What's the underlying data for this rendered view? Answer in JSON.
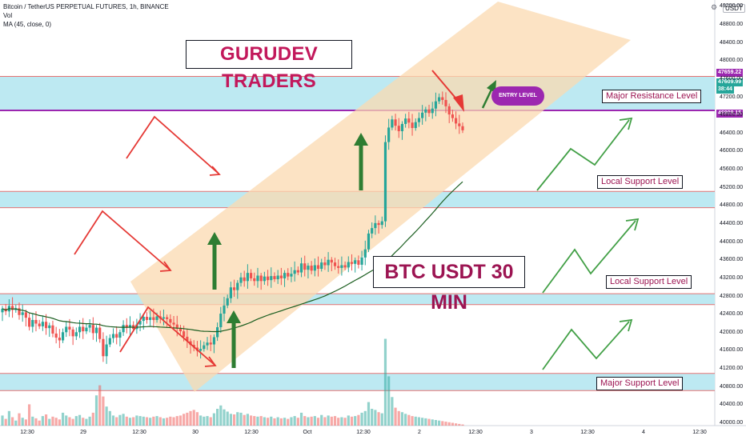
{
  "header": {
    "symbol_line": "Bitcoin / TetherUS PERPETUAL FUTURES, 1h, BINANCE",
    "vol_label": "Vol",
    "ma_label": "MA (45, close, 0)",
    "currency_badge": "USDT"
  },
  "annotations": {
    "title": "GURUDEV TRADERS",
    "subtitle": "BTC USDT 30 MIN",
    "entry_level": "ENTRY LEVEL",
    "levels": {
      "major_resistance": "Major Resistance Level",
      "local_support_1": "Local Support Level",
      "local_support_2": "Local Support Level",
      "major_support": "Major Support Level"
    }
  },
  "price_tags": {
    "upper": "47659.22",
    "current": "47609.99",
    "countdown": "38:44",
    "lower": "46909.15"
  },
  "colors": {
    "up": "#26a69a",
    "down": "#ef5350",
    "zone_fill": "#bde9f2",
    "channel_fill": "#fbd9b0",
    "ma_line": "#1b5e20",
    "arrow_green": "#2e7d32",
    "arrow_red": "#e53935",
    "resistance_tag": "#9c27b0",
    "price_tag": "#26a69a"
  },
  "chart_data": {
    "type": "candlestick",
    "title": "Bitcoin / TetherUS PERPETUAL FUTURES, 1h, BINANCE",
    "y_axis": {
      "ticks": [
        40000,
        40400,
        40800,
        41200,
        41600,
        42000,
        42400,
        42800,
        43200,
        43600,
        44000,
        44400,
        44800,
        45200,
        45600,
        46000,
        46400,
        46800,
        47200,
        47600,
        48000,
        48400,
        48800,
        49200
      ],
      "ylim": [
        40000,
        49300
      ]
    },
    "x_axis": {
      "ticks": [
        "12:30",
        "29",
        "12:30",
        "30",
        "12:30",
        "Oct",
        "12:30",
        "2",
        "12:30",
        "3",
        "12:30",
        "4",
        "12:30"
      ]
    },
    "zones": [
      {
        "name": "Major Resistance Level",
        "low": 46909.15,
        "high": 47659.22
      },
      {
        "name": "Local Support Level",
        "low": 44760,
        "high": 45120
      },
      {
        "name": "Local Support Level",
        "low": 42620,
        "high": 42860
      },
      {
        "name": "Major Support Level",
        "low": 40720,
        "high": 41100
      }
    ],
    "ma_period": 45,
    "close_start": 42450,
    "candle_moves": [
      80,
      -60,
      120,
      -90,
      40,
      -150,
      60,
      -120,
      -200,
      150,
      -80,
      -60,
      100,
      -140,
      60,
      -180,
      -90,
      -60,
      180,
      120,
      -60,
      -150,
      90,
      120,
      -100,
      80,
      60,
      -180,
      120,
      -250,
      -380,
      260,
      140,
      90,
      -80,
      120,
      160,
      -60,
      60,
      -90,
      100,
      80,
      90,
      -70,
      60,
      -60,
      80,
      -50,
      30,
      -40,
      -80,
      -40,
      -90,
      -60,
      -120,
      -100,
      -80,
      -60,
      -70,
      40,
      80,
      60,
      -40,
      160,
      220,
      300,
      180,
      160,
      240,
      -60,
      160,
      120,
      -80,
      180,
      -120,
      -60,
      120,
      -120,
      100,
      -80,
      90,
      -70,
      80,
      -60,
      120,
      -80,
      60,
      80,
      -50,
      200,
      -140,
      90,
      -110,
      120,
      -80,
      140,
      -60,
      120,
      -60,
      -80,
      -40,
      60,
      -50,
      120,
      -40,
      80,
      -100,
      160,
      180,
      350,
      120,
      110,
      -40,
      80,
      1750,
      320,
      180,
      -140,
      -120,
      160,
      120,
      -90,
      -120,
      130,
      90,
      120,
      70,
      -80,
      100,
      160,
      90,
      -60,
      -140,
      -180,
      -80,
      -120,
      -60,
      -90
    ],
    "volume": [
      180,
      120,
      260,
      150,
      90,
      220,
      140,
      110,
      380,
      160,
      130,
      90,
      170,
      200,
      120,
      160,
      140,
      110,
      230,
      180,
      150,
      120,
      170,
      190,
      140,
      120,
      160,
      230,
      540,
      720,
      520,
      340,
      260,
      180,
      150,
      190,
      210,
      160,
      140,
      150,
      180,
      170,
      160,
      150,
      140,
      160,
      170,
      150,
      130,
      140,
      160,
      150,
      170,
      180,
      210,
      230,
      260,
      280,
      240,
      180,
      160,
      170,
      150,
      220,
      300,
      360,
      290,
      250,
      210,
      200,
      240,
      230,
      190,
      210,
      180,
      170,
      160,
      170,
      150,
      140,
      160,
      130,
      150,
      130,
      140,
      120,
      150,
      170,
      140,
      230,
      170,
      150,
      160,
      170,
      140,
      190,
      150,
      180,
      160,
      170,
      140,
      150,
      140,
      180,
      160,
      170,
      190,
      230,
      260,
      420,
      300,
      280,
      240,
      220,
      1550,
      880,
      510,
      320,
      260,
      240,
      210,
      190,
      170,
      160,
      150,
      140,
      130,
      120,
      110,
      100,
      90,
      80,
      70,
      60,
      50,
      40,
      30,
      20
    ]
  }
}
